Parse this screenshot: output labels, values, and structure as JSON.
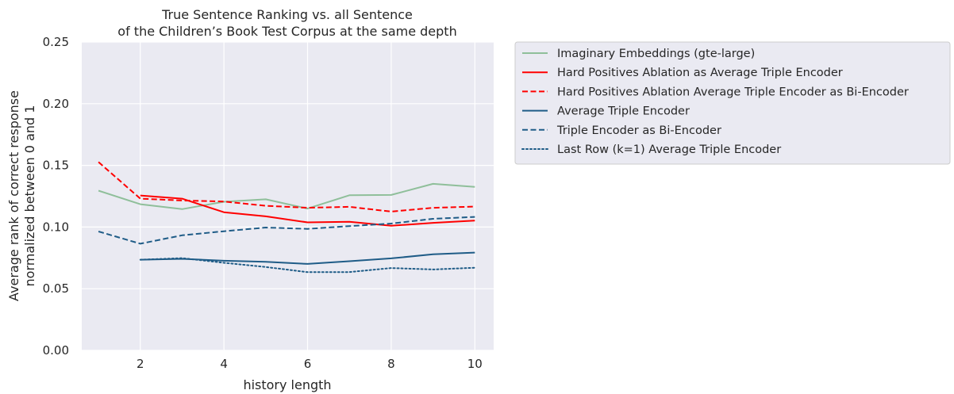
{
  "chart_data": {
    "type": "line",
    "title_lines": [
      "True Sentence Ranking vs. all Sentence",
      "of the Children’s Book Test Corpus at the same depth"
    ],
    "xlabel": "history length",
    "ylabel_lines": [
      "Average rank of correct response",
      "normalized between 0 and 1"
    ],
    "xlim": [
      0.6,
      10.45
    ],
    "ylim": [
      0,
      0.25
    ],
    "xticks": [
      2,
      4,
      6,
      8,
      10
    ],
    "xtick_labels": [
      "2",
      "4",
      "6",
      "8",
      "10"
    ],
    "yticks": [
      0,
      0.05,
      0.1,
      0.15,
      0.2,
      0.25
    ],
    "ytick_labels": [
      "0.00",
      "0.05",
      "0.10",
      "0.15",
      "0.20",
      "0.25"
    ],
    "grid": true,
    "legend_position": "outside-right-top",
    "series": [
      {
        "name": "Imaginary Embeddings (gte-large)",
        "color": "#8fbf9a",
        "dash": "solid",
        "x": [
          1,
          2,
          3,
          4,
          5,
          6,
          7,
          8,
          9,
          10
        ],
        "y": [
          0.1295,
          0.1185,
          0.1145,
          0.1205,
          0.1225,
          0.115,
          0.1258,
          0.126,
          0.135,
          0.1326
        ]
      },
      {
        "name": "Hard Positives Ablation as Average Triple Encoder",
        "color": "#ff0000",
        "dash": "solid",
        "x": [
          2,
          3,
          4,
          5,
          6,
          7,
          8,
          9,
          10
        ],
        "y": [
          0.1256,
          0.123,
          0.112,
          0.1087,
          0.1038,
          0.1043,
          0.101,
          0.1034,
          0.1052
        ]
      },
      {
        "name": "Hard Positives Ablation Average Triple Encoder as Bi-Encoder",
        "color": "#ff0000",
        "dash": "dashed",
        "x": [
          1,
          2,
          3,
          4,
          5,
          6,
          7,
          8,
          9,
          10
        ],
        "y": [
          0.1527,
          0.123,
          0.1215,
          0.1207,
          0.1172,
          0.1156,
          0.1164,
          0.1125,
          0.1156,
          0.1166
        ]
      },
      {
        "name": "Average Triple Encoder",
        "color": "#1f5c87",
        "dash": "solid",
        "x": [
          2,
          3,
          4,
          5,
          6,
          7,
          8,
          9,
          10
        ],
        "y": [
          0.0735,
          0.0742,
          0.0727,
          0.0718,
          0.0701,
          0.0723,
          0.0746,
          0.0779,
          0.0793
        ]
      },
      {
        "name": "Triple Encoder as Bi-Encoder",
        "color": "#1f5c87",
        "dash": "dashed",
        "x": [
          1,
          2,
          3,
          4,
          5,
          6,
          7,
          8,
          9,
          10
        ],
        "y": [
          0.0964,
          0.0865,
          0.0933,
          0.0966,
          0.0996,
          0.0985,
          0.1008,
          0.1028,
          0.1067,
          0.1082
        ]
      },
      {
        "name": "Last Row (k=1) Average Triple Encoder",
        "color": "#1f5c87",
        "dash": "dotted",
        "x": [
          2,
          3,
          4,
          5,
          6,
          7,
          8,
          9,
          10
        ],
        "y": [
          0.0735,
          0.0748,
          0.071,
          0.0676,
          0.0634,
          0.0635,
          0.0668,
          0.0656,
          0.067
        ]
      }
    ]
  }
}
